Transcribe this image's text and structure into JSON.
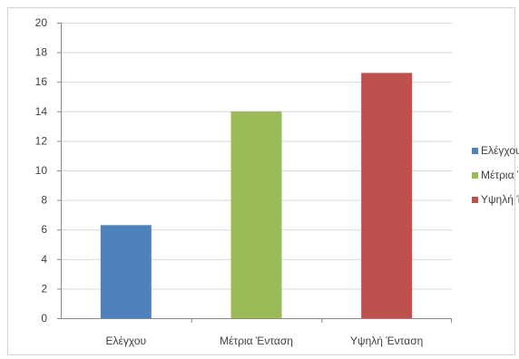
{
  "chart_data": {
    "type": "bar",
    "categories": [
      "Ελέγχου",
      "Μέτρια Ένταση",
      "Υψηλή Ένταση"
    ],
    "series": [
      {
        "values": [
          6.3,
          14.0,
          16.6
        ]
      }
    ],
    "bar_colors": [
      "#4f81bd",
      "#9bbb59",
      "#c0504d"
    ],
    "legend": {
      "position": "right",
      "entries": [
        "Ελέγχου",
        "Μέτρια Ένταση",
        "Υψηλή Ένταση"
      ]
    },
    "title": "",
    "xlabel": "",
    "ylabel": "",
    "ylim": [
      0,
      20
    ],
    "yticks": [
      0,
      2,
      4,
      6,
      8,
      10,
      12,
      14,
      16,
      18,
      20
    ],
    "grid": true,
    "grid_color": "#d9d9d9",
    "axis_color": "#888888"
  }
}
